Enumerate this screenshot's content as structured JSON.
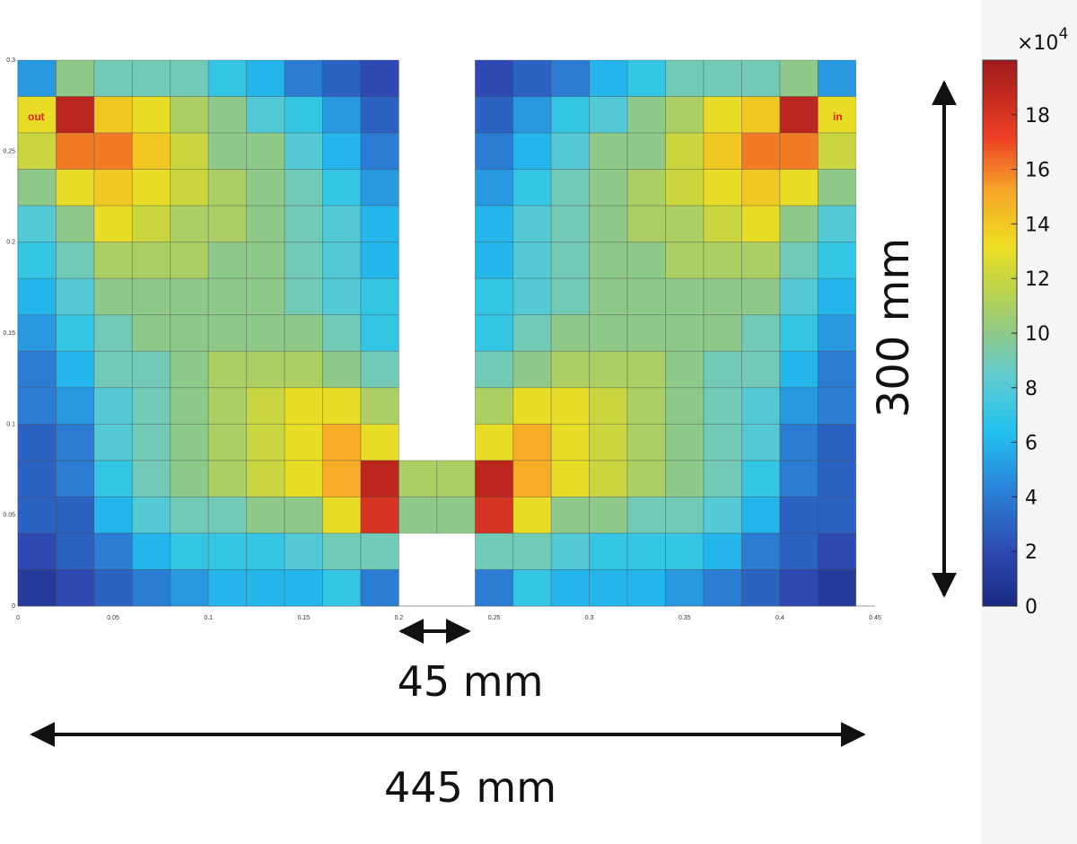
{
  "chart_data": {
    "type": "heatmap",
    "title": "",
    "xlabel": "",
    "ylabel": "",
    "x_ticks": [
      "0",
      "0.05",
      "0.1",
      "0.15",
      "0.2",
      "0.25",
      "0.3",
      "0.35",
      "0.4",
      "0.45"
    ],
    "x_tick_values": [
      0,
      0.05,
      0.1,
      0.15,
      0.2,
      0.25,
      0.3,
      0.35,
      0.4,
      0.45
    ],
    "y_ticks": [
      "0",
      "0.05",
      "0.1",
      "0.15",
      "0.2",
      "0.25",
      "0.3"
    ],
    "y_tick_values": [
      0,
      0.05,
      0.1,
      0.15,
      0.2,
      0.25,
      0.3
    ],
    "xlim": [
      0,
      0.45
    ],
    "ylim": [
      0,
      0.3
    ],
    "cell_size": 0.02,
    "x_start": 0,
    "rows_top_to_bottom": [
      [
        5,
        10,
        9,
        9,
        9,
        7,
        6,
        4,
        3,
        2,
        null,
        null,
        2,
        3,
        4,
        6,
        7,
        9,
        9,
        9,
        10,
        5
      ],
      [
        13,
        19,
        14,
        13,
        11,
        10,
        8,
        7,
        5,
        3,
        null,
        null,
        3,
        5,
        7,
        8,
        10,
        11,
        13,
        14,
        19,
        13
      ],
      [
        12,
        16,
        16,
        14,
        12,
        10,
        10,
        8,
        6,
        4,
        null,
        null,
        4,
        6,
        8,
        10,
        10,
        12,
        14,
        16,
        16,
        12
      ],
      [
        10,
        13,
        14,
        13,
        12,
        11,
        10,
        9,
        7,
        5,
        null,
        null,
        5,
        7,
        9,
        10,
        11,
        12,
        13,
        14,
        13,
        10
      ],
      [
        8,
        10,
        13,
        12,
        11,
        11,
        10,
        9,
        8,
        6,
        null,
        null,
        6,
        8,
        9,
        10,
        11,
        11,
        12,
        13,
        10,
        8
      ],
      [
        7,
        9,
        11,
        11,
        11,
        10,
        10,
        9,
        8,
        6,
        null,
        null,
        6,
        8,
        9,
        10,
        10,
        11,
        11,
        11,
        9,
        7
      ],
      [
        6,
        8,
        10,
        10,
        10,
        10,
        10,
        9,
        8,
        7,
        null,
        null,
        7,
        8,
        9,
        10,
        10,
        10,
        10,
        10,
        8,
        6
      ],
      [
        5,
        7,
        9,
        10,
        10,
        10,
        10,
        10,
        9,
        7,
        null,
        null,
        7,
        9,
        10,
        10,
        10,
        10,
        10,
        9,
        7,
        5
      ],
      [
        4,
        6,
        9,
        9,
        10,
        11,
        11,
        11,
        10,
        9,
        null,
        null,
        9,
        10,
        11,
        11,
        11,
        10,
        9,
        9,
        6,
        4
      ],
      [
        4,
        5,
        8,
        9,
        10,
        11,
        12,
        13,
        13,
        11,
        null,
        null,
        11,
        13,
        13,
        12,
        11,
        10,
        9,
        8,
        5,
        4
      ],
      [
        3,
        4,
        8,
        9,
        10,
        11,
        12,
        13,
        15,
        13,
        null,
        null,
        13,
        15,
        13,
        12,
        11,
        10,
        9,
        8,
        4,
        3
      ],
      [
        3,
        4,
        7,
        9,
        10,
        11,
        12,
        13,
        15,
        19,
        11,
        11,
        19,
        15,
        13,
        12,
        11,
        10,
        9,
        7,
        4,
        3
      ],
      [
        3,
        3,
        6,
        8,
        9,
        9,
        10,
        10,
        13,
        18,
        10,
        10,
        18,
        13,
        10,
        10,
        9,
        9,
        8,
        6,
        3,
        3
      ],
      [
        2,
        3,
        4,
        6,
        7,
        7,
        7,
        8,
        9,
        9,
        null,
        null,
        9,
        9,
        8,
        7,
        7,
        7,
        6,
        4,
        3,
        2
      ],
      [
        1,
        2,
        3,
        4,
        5,
        6,
        6,
        6,
        7,
        4,
        null,
        null,
        4,
        7,
        6,
        6,
        6,
        5,
        4,
        3,
        2,
        1
      ]
    ],
    "colorbar": {
      "min": 0,
      "max": 20,
      "ticks": [
        0,
        2,
        4,
        6,
        8,
        10,
        12,
        14,
        16,
        18
      ],
      "tick_labels": [
        "0",
        "2",
        "4",
        "6",
        "8",
        "10",
        "12",
        "14",
        "16",
        "18"
      ],
      "multiplier_prefix": "×10",
      "multiplier_exponent": "4",
      "colormap": "jet"
    },
    "annotations": {
      "out_label": "out",
      "in_label": "in",
      "gap_width": "45 mm",
      "total_width": "445 mm",
      "height": "300 mm"
    }
  }
}
